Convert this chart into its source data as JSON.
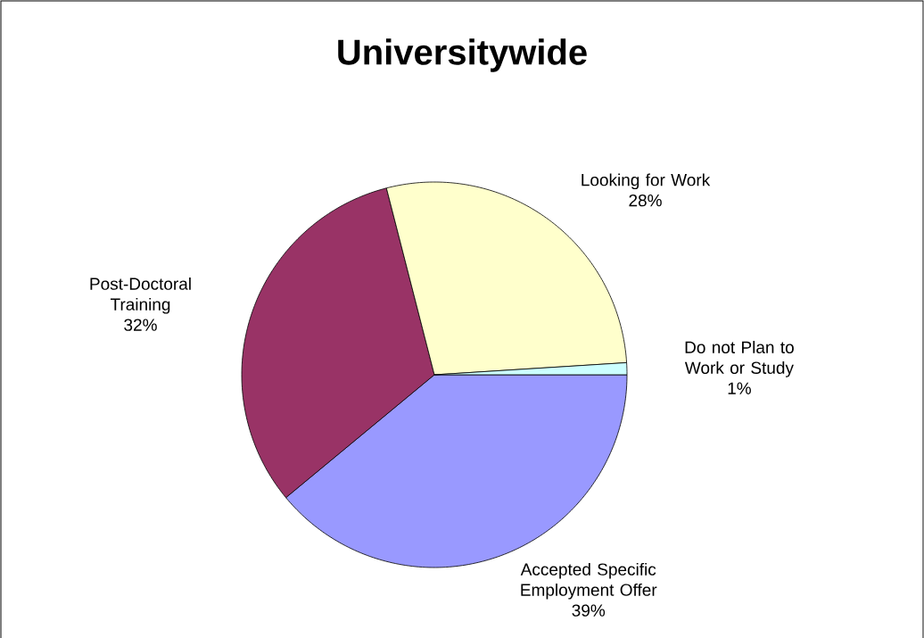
{
  "chart_data": {
    "type": "pie",
    "title": "Universitywide",
    "categories": [
      "Accepted Specific Employment Offer",
      "Post-Doctoral Training",
      "Looking for Work",
      "Do not Plan to Work or Study"
    ],
    "values": [
      39,
      32,
      28,
      1
    ],
    "colors": [
      "#9999ff",
      "#993366",
      "#ffffcc",
      "#ccffff"
    ],
    "value_labels": [
      "39%",
      "32%",
      "28%",
      "1%"
    ]
  }
}
